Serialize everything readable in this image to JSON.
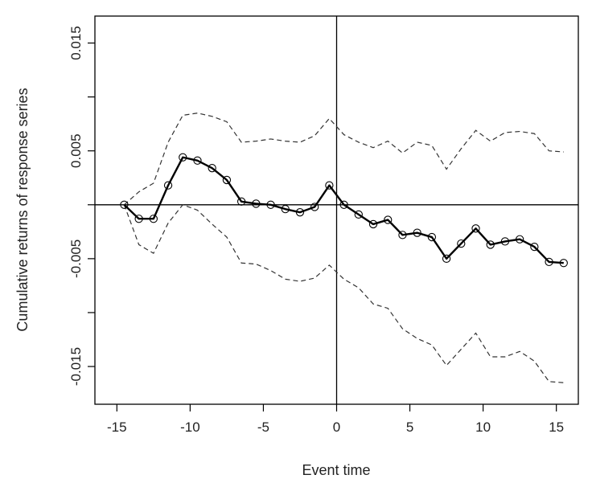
{
  "chart_data": {
    "type": "line",
    "title": "",
    "xlabel": "Event time",
    "ylabel": "Cumulative returns of response series",
    "xlim": [
      -16.5,
      16.5
    ],
    "ylim": [
      -0.0185,
      0.0175
    ],
    "xticks": [
      -15,
      -10,
      -5,
      0,
      5,
      10,
      15
    ],
    "xtick_labels": [
      "-15",
      "-10",
      "-5",
      "0",
      "5",
      "10",
      "15"
    ],
    "yticks": [
      -0.015,
      -0.01,
      -0.005,
      0,
      0.005,
      0.01,
      0.015
    ],
    "ytick_labels": [
      "-0.015",
      "",
      "-0.005",
      "",
      "0.005",
      "",
      "0.015"
    ],
    "reference_lines": {
      "vertical_x": 0,
      "horizontal_y": 0
    },
    "grid": false,
    "legend": "none",
    "x": [
      -14.5,
      -13.5,
      -12.5,
      -11.5,
      -10.5,
      -9.5,
      -8.5,
      -7.5,
      -6.5,
      -5.5,
      -4.5,
      -3.5,
      -2.5,
      -1.5,
      -0.5,
      0.5,
      1.5,
      2.5,
      3.5,
      4.5,
      5.5,
      6.5,
      7.5,
      8.5,
      9.5,
      10.5,
      11.5,
      12.5,
      13.5,
      14.5,
      15.5
    ],
    "series": [
      {
        "role": "estimate",
        "style": "solid-with-circle-markers",
        "color": "#000000",
        "values": [
          0.0,
          -0.0013,
          -0.0013,
          0.0018,
          0.0044,
          0.0041,
          0.0034,
          0.0023,
          0.0003,
          0.0001,
          0.0,
          -0.0004,
          -0.0007,
          -0.0002,
          0.0018,
          0.0,
          -0.0009,
          -0.0018,
          -0.0014,
          -0.0028,
          -0.0026,
          -0.003,
          -0.005,
          -0.0036,
          -0.0022,
          -0.0037,
          -0.0034,
          -0.0032,
          -0.0039,
          -0.0053,
          -0.0054
        ]
      },
      {
        "role": "upper band",
        "style": "dashed",
        "color": "#333333",
        "values": [
          0.0,
          0.0012,
          0.002,
          0.0058,
          0.0083,
          0.0085,
          0.0082,
          0.0077,
          0.0058,
          0.0059,
          0.0061,
          0.0059,
          0.0058,
          0.0064,
          0.008,
          0.0065,
          0.0058,
          0.0053,
          0.0059,
          0.0048,
          0.0058,
          0.0055,
          0.0033,
          0.0052,
          0.0069,
          0.0059,
          0.0067,
          0.0068,
          0.0066,
          0.005,
          0.0049
        ]
      },
      {
        "role": "lower band",
        "style": "dashed",
        "color": "#333333",
        "values": [
          0.0,
          -0.0037,
          -0.0045,
          -0.0017,
          0.0,
          -0.0005,
          -0.0018,
          -0.003,
          -0.0054,
          -0.0055,
          -0.0061,
          -0.0069,
          -0.0071,
          -0.0068,
          -0.0056,
          -0.0069,
          -0.0077,
          -0.0092,
          -0.0096,
          -0.0115,
          -0.0124,
          -0.013,
          -0.0149,
          -0.0134,
          -0.0119,
          -0.0141,
          -0.0141,
          -0.0136,
          -0.0145,
          -0.0164,
          -0.0165
        ]
      }
    ]
  }
}
